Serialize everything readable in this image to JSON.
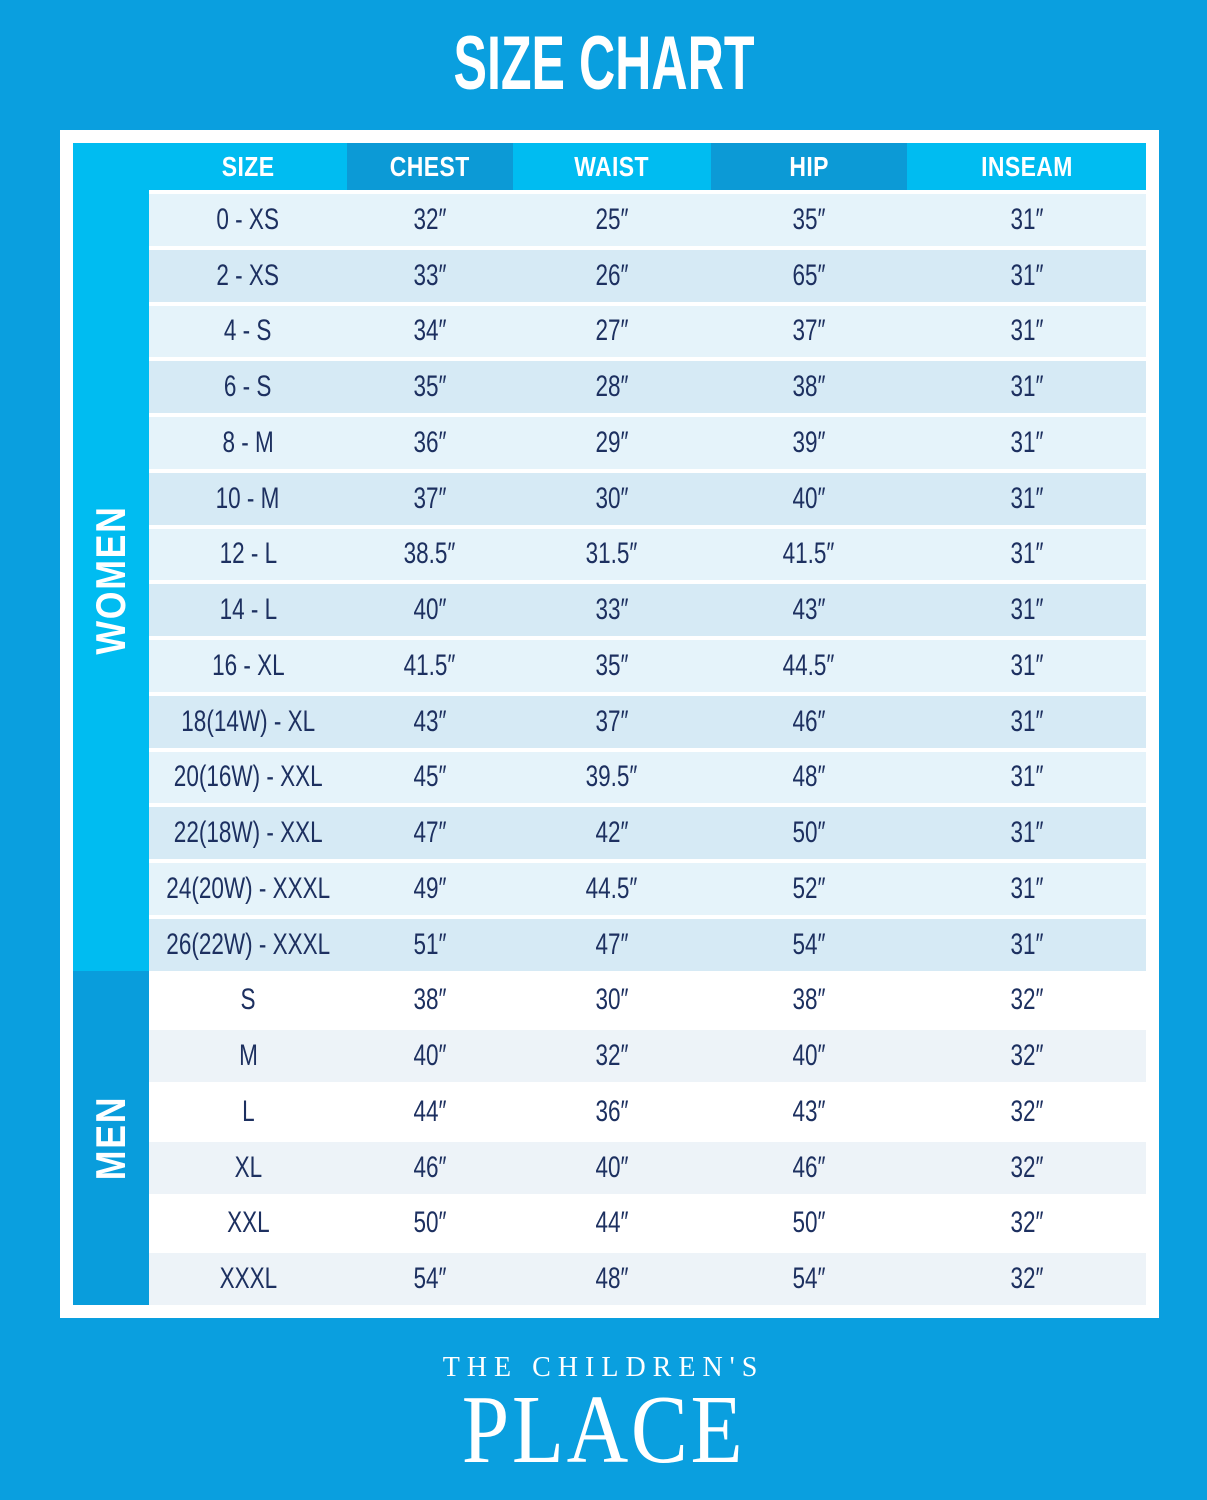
{
  "title": "SIZE CHART",
  "brand": {
    "line1": "THE CHILDREN'S",
    "line2": "PLACE"
  },
  "colors": {
    "background": "#0A9FDF",
    "header_cyan": "#00BCF1",
    "header_dark_blue": "#0C9AD6",
    "men_sidebar_blue": "#099DDC",
    "women_row_light": "#E5F3FA",
    "women_row_shaded": "#D6EAF5",
    "men_row_white": "#FFFFFF",
    "men_row_shaded": "#EDF3F8",
    "text_navy": "#1D3060",
    "frame_white": "#FFFFFF"
  },
  "chart_data": {
    "type": "table",
    "title": "SIZE CHART",
    "columns": [
      "SIZE",
      "CHEST",
      "WAIST",
      "HIP",
      "INSEAM"
    ],
    "sections": [
      {
        "name": "WOMEN",
        "rows": [
          [
            "0 - XS",
            "32″",
            "25″",
            "35″",
            "31″"
          ],
          [
            "2 - XS",
            "33″",
            "26″",
            "65″",
            "31″"
          ],
          [
            "4 - S",
            "34″",
            "27″",
            "37″",
            "31″"
          ],
          [
            "6 - S",
            "35″",
            "28″",
            "38″",
            "31″"
          ],
          [
            "8 - M",
            "36″",
            "29″",
            "39″",
            "31″"
          ],
          [
            "10 - M",
            "37″",
            "30″",
            "40″",
            "31″"
          ],
          [
            "12 - L",
            "38.5″",
            "31.5″",
            "41.5″",
            "31″"
          ],
          [
            "14 - L",
            "40″",
            "33″",
            "43″",
            "31″"
          ],
          [
            "16 - XL",
            "41.5″",
            "35″",
            "44.5″",
            "31″"
          ],
          [
            "18(14W) - XL",
            "43″",
            "37″",
            "46″",
            "31″"
          ],
          [
            "20(16W) - XXL",
            "45″",
            "39.5″",
            "48″",
            "31″"
          ],
          [
            "22(18W) - XXL",
            "47″",
            "42″",
            "50″",
            "31″"
          ],
          [
            "24(20W) - XXXL",
            "49″",
            "44.5″",
            "52″",
            "31″"
          ],
          [
            "26(22W) - XXXL",
            "51″",
            "47″",
            "54″",
            "31″"
          ]
        ]
      },
      {
        "name": "MEN",
        "rows": [
          [
            "S",
            "38″",
            "30″",
            "38″",
            "32″"
          ],
          [
            "M",
            "40″",
            "32″",
            "40″",
            "32″"
          ],
          [
            "L",
            "44″",
            "36″",
            "43″",
            "32″"
          ],
          [
            "XL",
            "46″",
            "40″",
            "46″",
            "32″"
          ],
          [
            "XXL",
            "50″",
            "44″",
            "50″",
            "32″"
          ],
          [
            "XXXL",
            "54″",
            "48″",
            "54″",
            "32″"
          ]
        ]
      }
    ]
  }
}
